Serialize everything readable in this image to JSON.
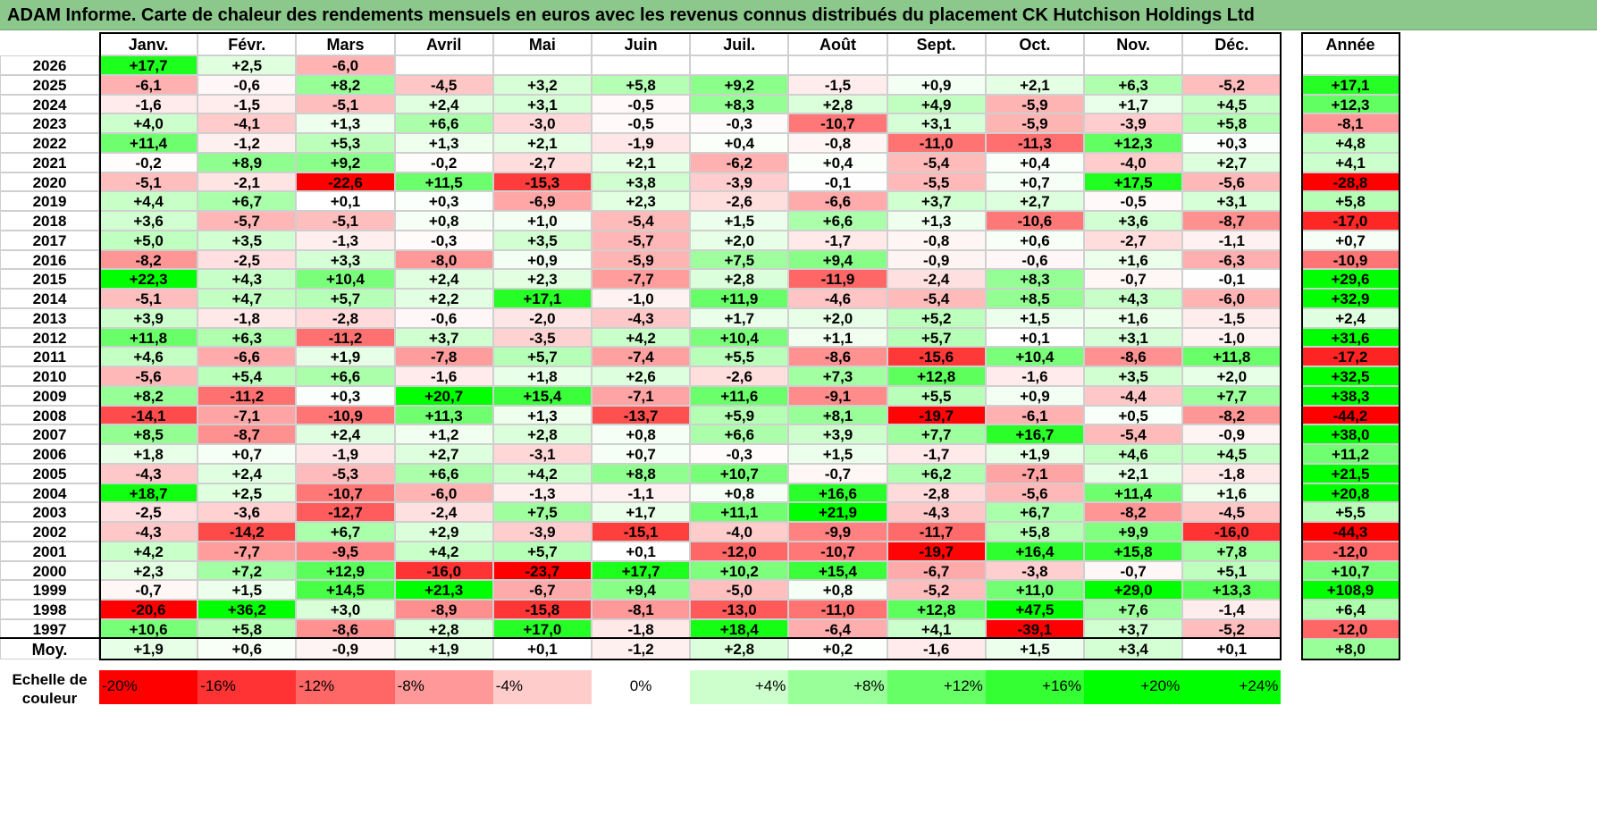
{
  "title": "ADAM Informe. Carte de chaleur des rendements mensuels en euros avec les revenus connus distribués du placement CK Hutchison Holdings Ltd",
  "chart_data": {
    "type": "heatmap",
    "months": [
      "Janv.",
      "Févr.",
      "Mars",
      "Avril",
      "Mai",
      "Juin",
      "Juil.",
      "Août",
      "Sept.",
      "Oct.",
      "Nov.",
      "Déc."
    ],
    "year_col_label": "Année",
    "rows": [
      {
        "year": "2026",
        "values": [
          "+17,7",
          "+2,5",
          "-6,0",
          "",
          "",
          "",
          "",
          "",
          "",
          "",
          "",
          ""
        ],
        "annual": ""
      },
      {
        "year": "2025",
        "values": [
          "-6,1",
          "-0,6",
          "+8,2",
          "-4,5",
          "+3,2",
          "+5,8",
          "+9,2",
          "-1,5",
          "+0,9",
          "+2,1",
          "+6,3",
          "-5,2"
        ],
        "annual": "+17,1"
      },
      {
        "year": "2024",
        "values": [
          "-1,6",
          "-1,5",
          "-5,1",
          "+2,4",
          "+3,1",
          "-0,5",
          "+8,3",
          "+2,8",
          "+4,9",
          "-5,9",
          "+1,7",
          "+4,5"
        ],
        "annual": "+12,3"
      },
      {
        "year": "2023",
        "values": [
          "+4,0",
          "-4,1",
          "+1,3",
          "+6,6",
          "-3,0",
          "-0,5",
          "-0,3",
          "-10,7",
          "+3,1",
          "-5,9",
          "-3,9",
          "+5,8"
        ],
        "annual": "-8,1"
      },
      {
        "year": "2022",
        "values": [
          "+11,4",
          "-1,2",
          "+5,3",
          "+1,3",
          "+2,1",
          "-1,9",
          "+0,4",
          "-0,8",
          "-11,0",
          "-11,3",
          "+12,3",
          "+0,3"
        ],
        "annual": "+4,8"
      },
      {
        "year": "2021",
        "values": [
          "-0,2",
          "+8,9",
          "+9,2",
          "-0,2",
          "-2,7",
          "+2,1",
          "-6,2",
          "+0,4",
          "-5,4",
          "+0,4",
          "-4,0",
          "+2,7"
        ],
        "annual": "+4,1"
      },
      {
        "year": "2020",
        "values": [
          "-5,1",
          "-2,1",
          "-22,6",
          "+11,5",
          "-15,3",
          "+3,8",
          "-3,9",
          "-0,1",
          "-5,5",
          "+0,7",
          "+17,5",
          "-5,6"
        ],
        "annual": "-28,8"
      },
      {
        "year": "2019",
        "values": [
          "+4,4",
          "+6,7",
          "+0,1",
          "+0,3",
          "-6,9",
          "+2,3",
          "-2,6",
          "-6,6",
          "+3,7",
          "+2,7",
          "-0,5",
          "+3,1"
        ],
        "annual": "+5,8"
      },
      {
        "year": "2018",
        "values": [
          "+3,6",
          "-5,7",
          "-5,1",
          "+0,8",
          "+1,0",
          "-5,4",
          "+1,5",
          "+6,6",
          "+1,3",
          "-10,6",
          "+3,6",
          "-8,7"
        ],
        "annual": "-17,0"
      },
      {
        "year": "2017",
        "values": [
          "+5,0",
          "+3,5",
          "-1,3",
          "-0,3",
          "+3,5",
          "-5,7",
          "+2,0",
          "-1,7",
          "-0,8",
          "+0,6",
          "-2,7",
          "-1,1"
        ],
        "annual": "+0,7"
      },
      {
        "year": "2016",
        "values": [
          "-8,2",
          "-2,5",
          "+3,3",
          "-8,0",
          "+0,9",
          "-5,9",
          "+7,5",
          "+9,4",
          "-0,9",
          "-0,6",
          "+1,6",
          "-6,3"
        ],
        "annual": "-10,9"
      },
      {
        "year": "2015",
        "values": [
          "+22,3",
          "+4,3",
          "+10,4",
          "+2,4",
          "+2,3",
          "-7,7",
          "+2,8",
          "-11,9",
          "-2,4",
          "+8,3",
          "-0,7",
          "-0,1"
        ],
        "annual": "+29,6"
      },
      {
        "year": "2014",
        "values": [
          "-5,1",
          "+4,7",
          "+5,7",
          "+2,2",
          "+17,1",
          "-1,0",
          "+11,9",
          "-4,6",
          "-5,4",
          "+8,5",
          "+4,3",
          "-6,0"
        ],
        "annual": "+32,9"
      },
      {
        "year": "2013",
        "values": [
          "+3,9",
          "-1,8",
          "-2,8",
          "-0,6",
          "-2,0",
          "-4,3",
          "+1,7",
          "+2,0",
          "+5,2",
          "+1,5",
          "+1,6",
          "-1,5"
        ],
        "annual": "+2,4"
      },
      {
        "year": "2012",
        "values": [
          "+11,8",
          "+6,3",
          "-11,2",
          "+3,7",
          "-3,5",
          "+4,2",
          "+10,4",
          "+1,1",
          "+5,7",
          "+0,1",
          "+3,1",
          "-1,0"
        ],
        "annual": "+31,6"
      },
      {
        "year": "2011",
        "values": [
          "+4,6",
          "-6,6",
          "+1,9",
          "-7,8",
          "+5,7",
          "-7,4",
          "+5,5",
          "-8,6",
          "-15,6",
          "+10,4",
          "-8,6",
          "+11,8"
        ],
        "annual": "-17,2"
      },
      {
        "year": "2010",
        "values": [
          "-5,6",
          "+5,4",
          "+6,6",
          "-1,6",
          "+1,8",
          "+2,6",
          "-2,6",
          "+7,3",
          "+12,8",
          "-1,6",
          "+3,5",
          "+2,0"
        ],
        "annual": "+32,5"
      },
      {
        "year": "2009",
        "values": [
          "+8,2",
          "-11,2",
          "+0,3",
          "+20,7",
          "+15,4",
          "-7,1",
          "+11,6",
          "-9,1",
          "+5,5",
          "+0,9",
          "-4,4",
          "+7,7"
        ],
        "annual": "+38,3"
      },
      {
        "year": "2008",
        "values": [
          "-14,1",
          "-7,1",
          "-10,9",
          "+11,3",
          "+1,3",
          "-13,7",
          "+5,9",
          "+8,1",
          "-19,7",
          "-6,1",
          "+0,5",
          "-8,2"
        ],
        "annual": "-44,2"
      },
      {
        "year": "2007",
        "values": [
          "+8,5",
          "-8,7",
          "+2,4",
          "+1,2",
          "+2,8",
          "+0,8",
          "+6,6",
          "+3,9",
          "+7,7",
          "+16,7",
          "-5,4",
          "-0,9"
        ],
        "annual": "+38,0"
      },
      {
        "year": "2006",
        "values": [
          "+1,8",
          "+0,7",
          "-1,9",
          "+2,7",
          "-3,1",
          "+0,7",
          "-0,3",
          "+1,5",
          "-1,7",
          "+1,9",
          "+4,6",
          "+4,5"
        ],
        "annual": "+11,2"
      },
      {
        "year": "2005",
        "values": [
          "-4,3",
          "+2,4",
          "-5,3",
          "+6,6",
          "+4,2",
          "+8,8",
          "+10,7",
          "-0,7",
          "+6,2",
          "-7,1",
          "+2,1",
          "-1,8"
        ],
        "annual": "+21,5"
      },
      {
        "year": "2004",
        "values": [
          "+18,7",
          "+2,5",
          "-10,7",
          "-6,0",
          "-1,3",
          "-1,1",
          "+0,8",
          "+16,6",
          "-2,8",
          "-5,6",
          "+11,4",
          "+1,6"
        ],
        "annual": "+20,8"
      },
      {
        "year": "2003",
        "values": [
          "-2,5",
          "-3,6",
          "-12,7",
          "-2,4",
          "+7,5",
          "+1,7",
          "+11,1",
          "+21,9",
          "-4,3",
          "+6,7",
          "-8,2",
          "-4,5"
        ],
        "annual": "+5,5"
      },
      {
        "year": "2002",
        "values": [
          "-4,3",
          "-14,2",
          "+6,7",
          "+2,9",
          "-3,9",
          "-15,1",
          "-4,0",
          "-9,9",
          "-11,7",
          "+5,8",
          "+9,9",
          "-16,0"
        ],
        "annual": "-44,3"
      },
      {
        "year": "2001",
        "values": [
          "+4,2",
          "-7,7",
          "-9,5",
          "+4,2",
          "+5,7",
          "+0,1",
          "-12,0",
          "-10,7",
          "-19,7",
          "+16,4",
          "+15,8",
          "+7,8"
        ],
        "annual": "-12,0"
      },
      {
        "year": "2000",
        "values": [
          "+2,3",
          "+7,2",
          "+12,9",
          "-16,0",
          "-23,7",
          "+17,7",
          "+10,2",
          "+15,4",
          "-6,7",
          "-3,8",
          "-0,7",
          "+5,1"
        ],
        "annual": "+10,7"
      },
      {
        "year": "1999",
        "values": [
          "-0,7",
          "+1,5",
          "+14,5",
          "+21,3",
          "-6,7",
          "+9,4",
          "-5,0",
          "+0,8",
          "-5,2",
          "+11,0",
          "+29,0",
          "+13,3"
        ],
        "annual": "+108,9"
      },
      {
        "year": "1998",
        "values": [
          "-20,6",
          "+36,2",
          "+3,0",
          "-8,9",
          "-15,8",
          "-8,1",
          "-13,0",
          "-11,0",
          "+12,8",
          "+47,5",
          "+7,6",
          "-1,4"
        ],
        "annual": "+6,4"
      },
      {
        "year": "1997",
        "values": [
          "+10,6",
          "+5,8",
          "-8,6",
          "+2,8",
          "+17,0",
          "-1,8",
          "+18,4",
          "-6,4",
          "+4,1",
          "-39,1",
          "+3,7",
          "-5,2"
        ],
        "annual": "-12,0"
      }
    ],
    "average": {
      "label": "Moy.",
      "values": [
        "+1,9",
        "+0,6",
        "-0,9",
        "+1,9",
        "+0,1",
        "-1,2",
        "+2,8",
        "+0,2",
        "-1,6",
        "+1,5",
        "+3,4",
        "+0,1"
      ],
      "annual": "+8,0"
    },
    "scale": {
      "label_line1": "Echelle de",
      "label_line2": "couleur",
      "steps": [
        "-20%",
        "-16%",
        "-12%",
        "-8%",
        "-4%",
        "0%",
        "+4%",
        "+8%",
        "+12%",
        "+16%",
        "+20%",
        "+24%"
      ]
    }
  }
}
